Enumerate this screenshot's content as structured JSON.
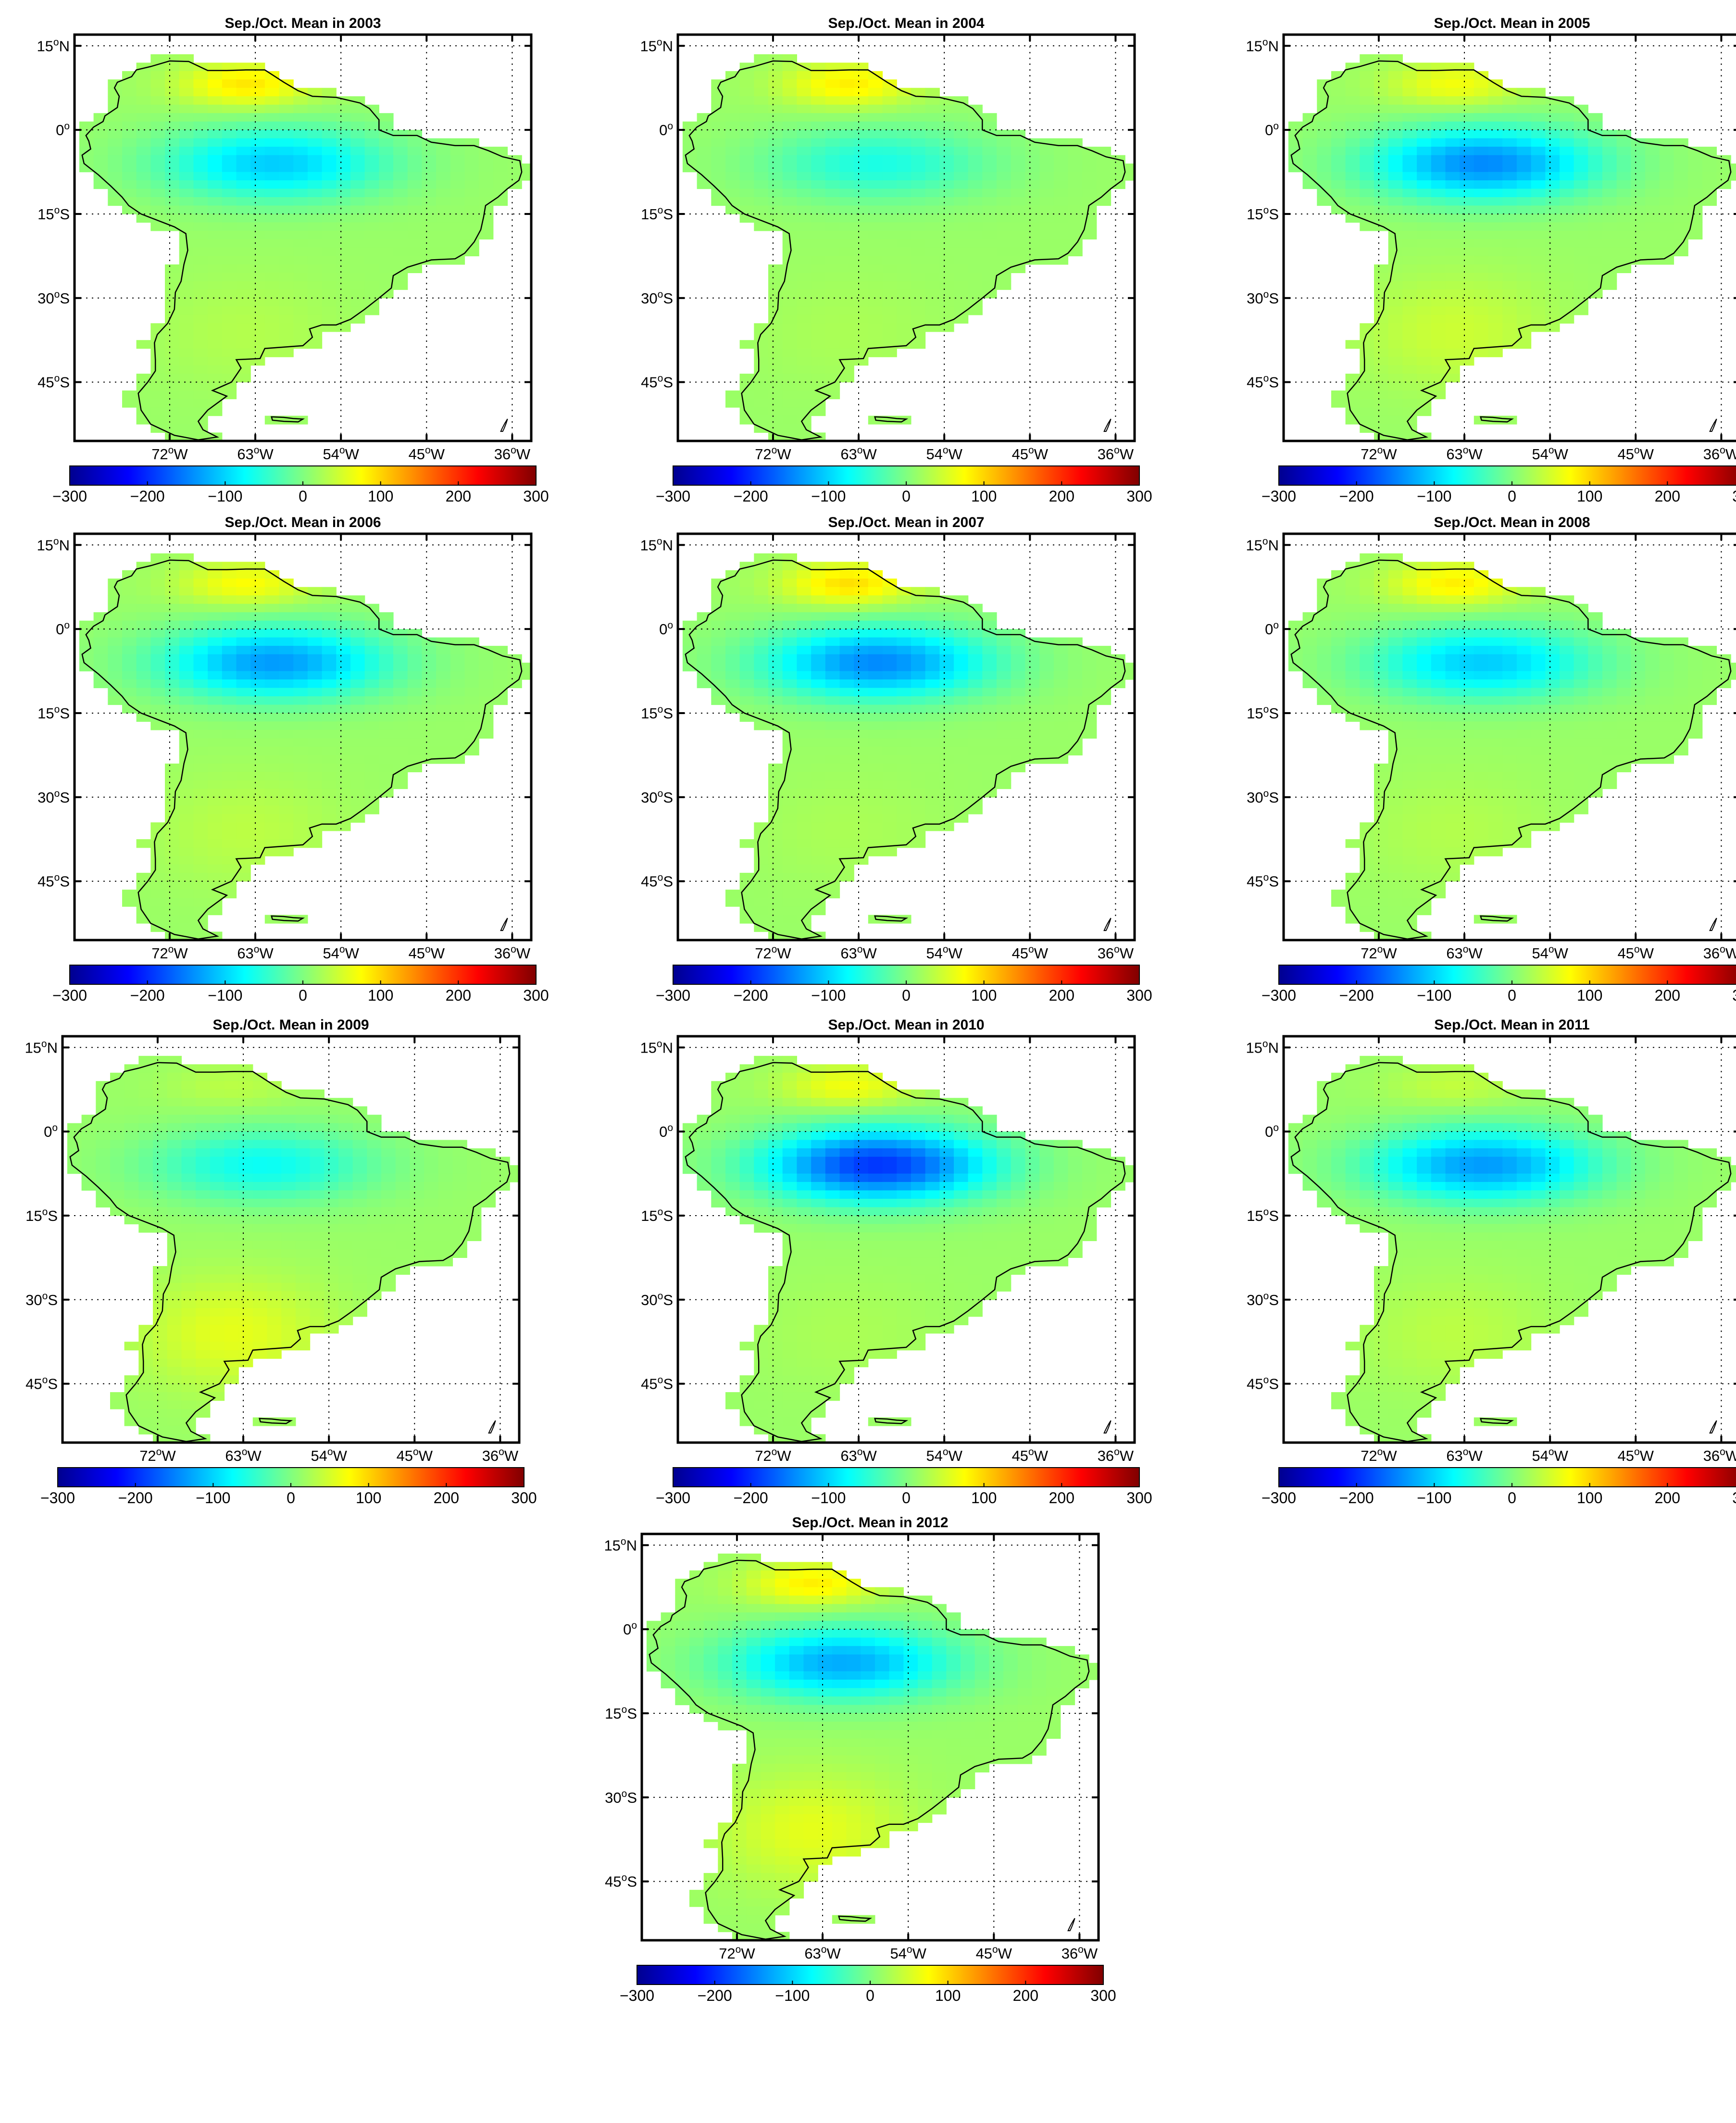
{
  "figure": {
    "panel_title_template": "Sep./Oct. Mean in {year}",
    "colorbar": {
      "ticks": [
        "−300",
        "−200",
        "−100",
        "0",
        "100",
        "200",
        "300"
      ],
      "range": [
        -300,
        300
      ],
      "colormap": "jet",
      "stops": [
        "#00008f",
        "#0000ff",
        "#0080ff",
        "#00ffff",
        "#80ff80",
        "#ffff00",
        "#ff8000",
        "#ff0000",
        "#800000"
      ]
    },
    "lat_labels": [
      {
        "deg": "15",
        "hem": "N"
      },
      {
        "deg": "0",
        "hem": ""
      },
      {
        "deg": "15",
        "hem": "S"
      },
      {
        "deg": "30",
        "hem": "S"
      },
      {
        "deg": "45",
        "hem": "S"
      }
    ],
    "lon_labels": [
      {
        "deg": "72",
        "hem": "W"
      },
      {
        "deg": "63",
        "hem": "W"
      },
      {
        "deg": "54",
        "hem": "W"
      },
      {
        "deg": "45",
        "hem": "W"
      },
      {
        "deg": "36",
        "hem": "W"
      }
    ],
    "degree_symbol": "o",
    "colors": {
      "ocean": "#ffffff",
      "coast": "#000000",
      "grid": "#000000",
      "frame": "#000000",
      "land_base": "#33e68a"
    }
  },
  "panels": [
    {
      "year": "2003",
      "title": "Sep./Oct. Mean in 2003",
      "amazon_min": -120,
      "guiana_max": 75,
      "south_level": 15
    },
    {
      "year": "2004",
      "title": "Sep./Oct. Mean in 2004",
      "amazon_min": -75,
      "guiana_max": 70,
      "south_level": 10
    },
    {
      "year": "2005",
      "title": "Sep./Oct. Mean in 2005",
      "amazon_min": -160,
      "guiana_max": 55,
      "south_level": 30
    },
    {
      "year": "2006",
      "title": "Sep./Oct. Mean in 2006",
      "amazon_min": -150,
      "guiana_max": 60,
      "south_level": 20
    },
    {
      "year": "2007",
      "title": "Sep./Oct. Mean in 2007",
      "amazon_min": -160,
      "guiana_max": 80,
      "south_level": 10
    },
    {
      "year": "2008",
      "title": "Sep./Oct. Mean in 2008",
      "amazon_min": -120,
      "guiana_max": 70,
      "south_level": 15
    },
    {
      "year": "2009",
      "title": "Sep./Oct. Mean in 2009",
      "amazon_min": -85,
      "guiana_max": 20,
      "south_level": 45
    },
    {
      "year": "2010",
      "title": "Sep./Oct. Mean in 2010",
      "amazon_min": -210,
      "guiana_max": 55,
      "south_level": 10
    },
    {
      "year": "2011",
      "title": "Sep./Oct. Mean in 2011",
      "amazon_min": -150,
      "guiana_max": 25,
      "south_level": 20
    },
    {
      "year": "2012",
      "title": "Sep./Oct. Mean in 2012",
      "amazon_min": -140,
      "guiana_max": 70,
      "south_level": 45
    }
  ]
}
